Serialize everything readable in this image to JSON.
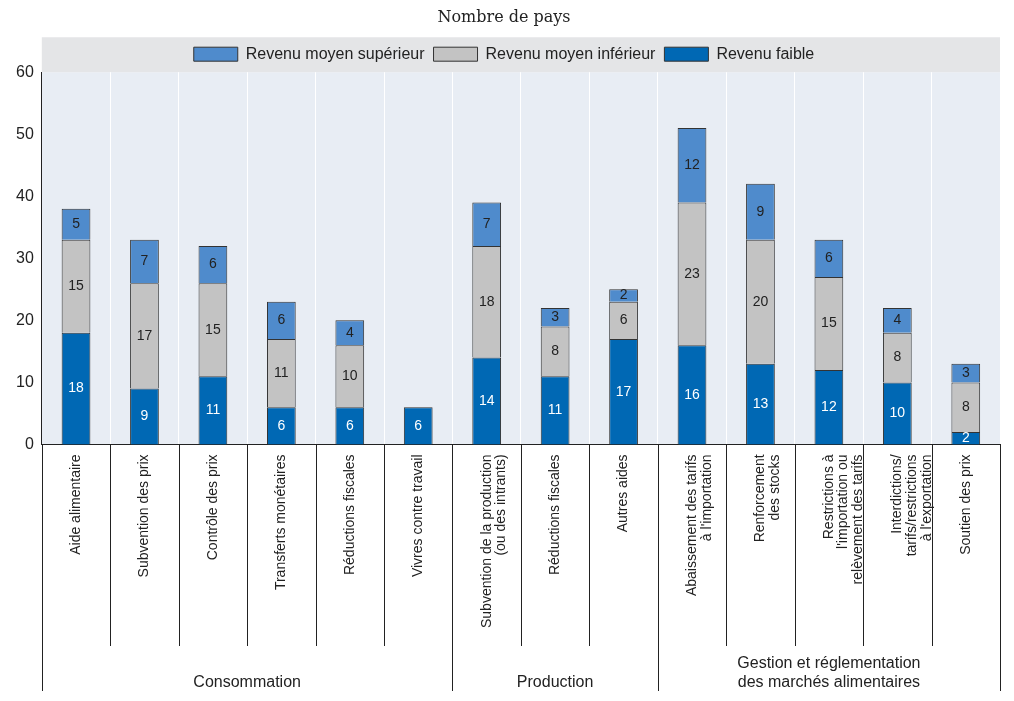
{
  "chart_data": {
    "type": "bar",
    "subtitle": "Nombre de pays",
    "categories": [
      "Aide alimentaire",
      "Subvention des prix",
      "Contrôle des prix",
      "Transferts monétaires",
      "Réductions fiscales",
      "Vivres contre travail",
      "Subvention de la production\n(ou des intrants)",
      "Réductions fiscales",
      "Autres aides",
      "Abaissement des tarifs\nà l'importation",
      "Renforcement\ndes stocks",
      "Restrictions à\nl'importation ou\nrelèvement des tarifs",
      "Interdictions/\ntarifs/restrictions\nà l'exportation",
      "Soutien des prix"
    ],
    "series": [
      {
        "name": "Revenu faible",
        "color": "#0068b4",
        "values": [
          18,
          9,
          11,
          6,
          6,
          6,
          14,
          11,
          17,
          16,
          13,
          12,
          10,
          2
        ]
      },
      {
        "name": "Revenu moyen inférieur",
        "color": "#c3c3c3",
        "values": [
          15,
          17,
          15,
          11,
          10,
          null,
          18,
          8,
          6,
          23,
          20,
          15,
          8,
          8
        ]
      },
      {
        "name": "Revenu moyen supérieur",
        "color": "#4f8bcc",
        "values": [
          5,
          7,
          6,
          6,
          4,
          null,
          7,
          3,
          2,
          12,
          9,
          6,
          4,
          3
        ]
      }
    ],
    "annotations": [
      "Consommation",
      "Production",
      "Gestion et réglementation\ndes marchés alimentaires"
    ],
    "stacked": true,
    "ylim": [
      0,
      60
    ],
    "yticks": [
      0,
      10,
      20,
      30,
      40,
      50,
      60
    ],
    "grid": "x",
    "legend": "top",
    "data_labels": true
  }
}
